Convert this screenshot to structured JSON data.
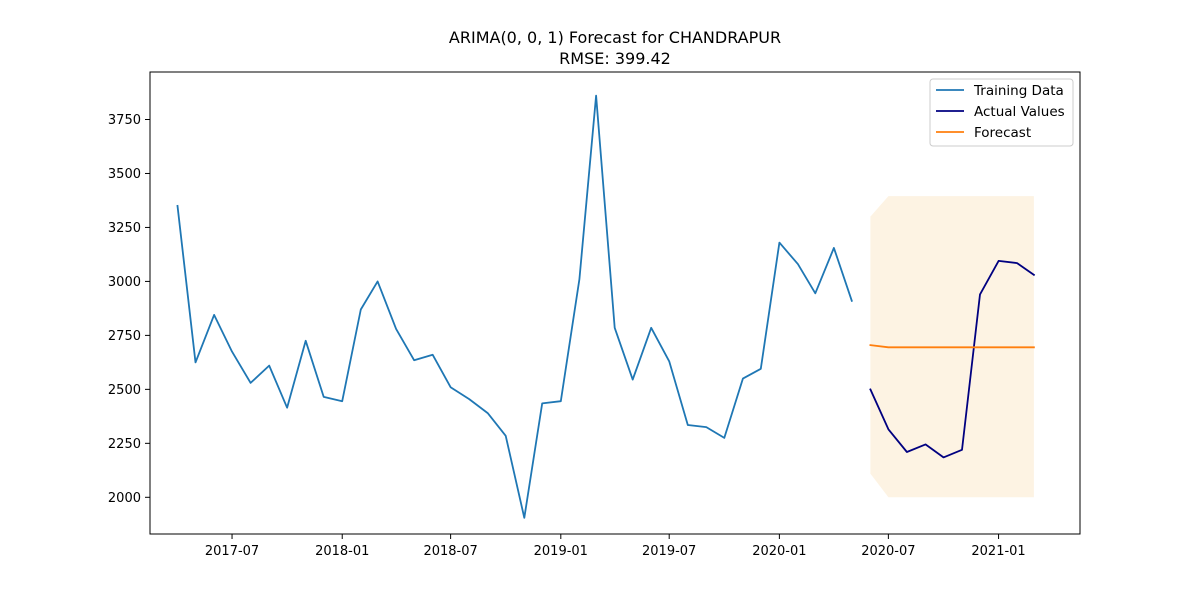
{
  "chart_data": {
    "type": "line",
    "title": "ARIMA(0, 0, 1) Forecast for CHANDRAPUR",
    "subtitle": "RMSE: 399.42",
    "xlabel": "",
    "ylabel": "",
    "xlim": [
      "2017-02-14",
      "2021-05-17"
    ],
    "ylim": [
      1830,
      3970
    ],
    "grid": false,
    "legend": "top-right",
    "x_ticks": [
      "2017-07-01",
      "2018-01-01",
      "2018-07-01",
      "2019-01-01",
      "2019-07-01",
      "2020-01-01",
      "2020-07-01",
      "2021-01-01"
    ],
    "x_tick_labels": [
      "2017-07",
      "2018-01",
      "2018-07",
      "2019-01",
      "2019-07",
      "2020-01",
      "2020-07",
      "2021-01"
    ],
    "y_ticks": [
      2000,
      2250,
      2500,
      2750,
      3000,
      3250,
      3500,
      3750
    ],
    "y_tick_labels": [
      "2000",
      "2250",
      "2500",
      "2750",
      "3000",
      "3250",
      "3500",
      "3750"
    ],
    "series": [
      {
        "name": "Training Data",
        "color": "#1f77b4",
        "x": [
          "2017-04-01",
          "2017-05-01",
          "2017-06-01",
          "2017-07-01",
          "2017-08-01",
          "2017-09-01",
          "2017-10-01",
          "2017-11-01",
          "2017-12-01",
          "2018-01-01",
          "2018-02-01",
          "2018-03-01",
          "2018-04-01",
          "2018-05-01",
          "2018-06-01",
          "2018-07-01",
          "2018-08-01",
          "2018-09-01",
          "2018-10-01",
          "2018-11-01",
          "2018-12-01",
          "2019-01-01",
          "2019-02-01",
          "2019-03-01",
          "2019-04-01",
          "2019-05-01",
          "2019-06-01",
          "2019-07-01",
          "2019-08-01",
          "2019-09-01",
          "2019-10-01",
          "2019-11-01",
          "2019-12-01",
          "2020-01-01",
          "2020-02-01",
          "2020-03-01",
          "2020-04-01",
          "2020-05-01"
        ],
        "values": [
          3350,
          2625,
          2845,
          2675,
          2530,
          2610,
          2415,
          2725,
          2465,
          2445,
          2870,
          3000,
          2780,
          2635,
          2660,
          2510,
          2455,
          2390,
          2285,
          1905,
          2435,
          2445,
          3010,
          3860,
          2785,
          2545,
          2785,
          2630,
          2335,
          2325,
          2275,
          2550,
          2595,
          3180,
          3080,
          2945,
          3155,
          2910
        ]
      },
      {
        "name": "Actual Values",
        "color": "#000080",
        "x": [
          "2020-06-01",
          "2020-07-01",
          "2020-08-01",
          "2020-09-01",
          "2020-10-01",
          "2020-11-01",
          "2020-12-01",
          "2021-01-01",
          "2021-02-01",
          "2021-03-01"
        ],
        "values": [
          2500,
          2315,
          2210,
          2245,
          2185,
          2220,
          2940,
          3095,
          3085,
          3030
        ]
      },
      {
        "name": "Forecast",
        "color": "#ff7f0e",
        "x": [
          "2020-06-01",
          "2020-07-01",
          "2020-08-01",
          "2020-09-01",
          "2020-10-01",
          "2020-11-01",
          "2020-12-01",
          "2021-01-01",
          "2021-02-01",
          "2021-03-01"
        ],
        "values": [
          2705,
          2695,
          2695,
          2695,
          2695,
          2695,
          2695,
          2695,
          2695,
          2695
        ]
      }
    ],
    "confidence_band": {
      "color": "#fdf3e3",
      "x": [
        "2020-06-01",
        "2020-07-01",
        "2020-08-01",
        "2020-09-01",
        "2020-10-01",
        "2020-11-01",
        "2020-12-01",
        "2021-01-01",
        "2021-02-01",
        "2021-03-01"
      ],
      "lower": [
        2110,
        2000,
        2000,
        2000,
        2000,
        2000,
        2000,
        2000,
        2000,
        2000
      ],
      "upper": [
        3300,
        3395,
        3395,
        3395,
        3395,
        3395,
        3395,
        3395,
        3395,
        3395
      ]
    }
  }
}
